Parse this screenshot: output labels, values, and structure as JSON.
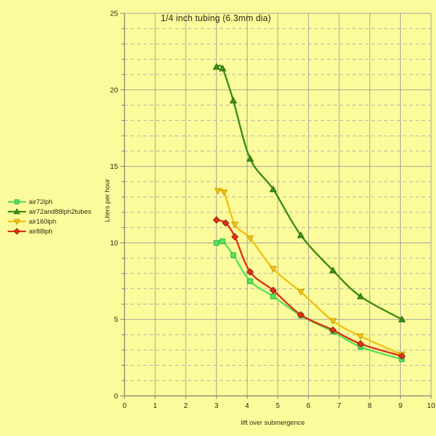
{
  "chart_data": {
    "type": "line",
    "title": "1/4 inch tubing (6.3mm dia)",
    "xlabel": "lift over submergence",
    "ylabel": "Liters per hour",
    "xlim": [
      0,
      10
    ],
    "ylim": [
      0,
      25
    ],
    "x_ticks": [
      0,
      1,
      2,
      3,
      4,
      5,
      6,
      7,
      8,
      9,
      10
    ],
    "y_major_ticks": [
      0,
      5,
      10,
      15,
      20,
      25
    ],
    "y_minor_step": 1,
    "grid": {
      "vertical": "solid",
      "horizontal_major": "solid",
      "horizontal_minor": "dashed"
    },
    "legend_position": "left-outside",
    "colors": {
      "background": "#fbfb9b",
      "grid_major": "#a3a396",
      "grid_minor": "#b6b6a8",
      "axis": "#7d7d72",
      "text": "#2e2c12"
    },
    "series": [
      {
        "name": "air72lph",
        "marker": "square",
        "color": "#59e359",
        "edge": "#2fae4a",
        "points": [
          [
            3.0,
            10.0
          ],
          [
            3.2,
            10.1
          ],
          [
            3.55,
            9.2
          ],
          [
            4.1,
            7.5
          ],
          [
            4.85,
            6.5
          ],
          [
            5.75,
            5.25
          ],
          [
            6.8,
            4.2
          ],
          [
            7.7,
            3.2
          ],
          [
            9.05,
            2.4
          ]
        ]
      },
      {
        "name": "air72and88lph2tubes",
        "marker": "triangle-up",
        "color": "#3e8e16",
        "edge": "#2f6d10",
        "points": [
          [
            3.0,
            21.5
          ],
          [
            3.2,
            21.4
          ],
          [
            3.55,
            19.3
          ],
          [
            4.1,
            15.5
          ],
          [
            4.85,
            13.5
          ],
          [
            5.75,
            10.5
          ],
          [
            6.8,
            8.2
          ],
          [
            7.7,
            6.5
          ],
          [
            9.05,
            5.0
          ]
        ]
      },
      {
        "name": "air160lph",
        "marker": "triangle-down",
        "color": "#f0c313",
        "edge": "#cf9d08",
        "points": [
          [
            3.05,
            13.4
          ],
          [
            3.25,
            13.3
          ],
          [
            3.6,
            11.2
          ],
          [
            4.1,
            10.3
          ],
          [
            4.85,
            8.3
          ],
          [
            5.75,
            6.8
          ],
          [
            6.8,
            4.9
          ],
          [
            7.7,
            3.9
          ],
          [
            9.05,
            2.7
          ]
        ]
      },
      {
        "name": "air88lph",
        "marker": "diamond",
        "color": "#de3315",
        "edge": "#991b08",
        "points": [
          [
            3.0,
            11.5
          ],
          [
            3.3,
            11.3
          ],
          [
            3.6,
            10.4
          ],
          [
            4.1,
            8.1
          ],
          [
            4.85,
            6.9
          ],
          [
            5.75,
            5.3
          ],
          [
            6.8,
            4.3
          ],
          [
            7.7,
            3.4
          ],
          [
            9.05,
            2.6
          ]
        ]
      }
    ]
  }
}
